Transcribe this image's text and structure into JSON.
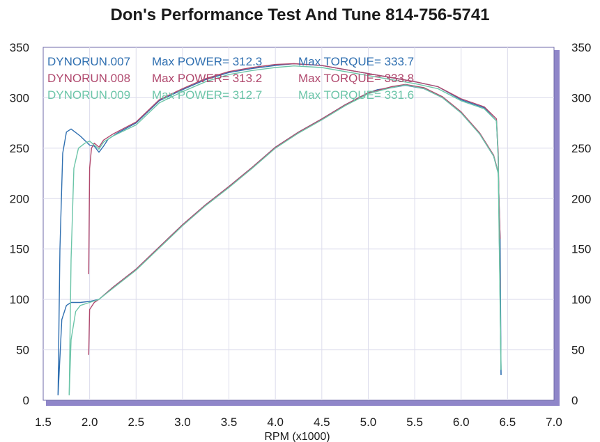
{
  "chart_data": {
    "type": "line",
    "title": "Don's Performance Test And Tune 814-756-5741",
    "xlabel": "RPM (x1000)",
    "ylabel": "",
    "xlim": [
      1.5,
      7.0
    ],
    "ylim": [
      0,
      350
    ],
    "x_ticks": [
      "1.5",
      "2.0",
      "2.5",
      "3.0",
      "3.5",
      "4.0",
      "4.5",
      "5.0",
      "5.5",
      "6.0",
      "6.5",
      "7.0"
    ],
    "y_ticks": [
      "0",
      "50",
      "100",
      "150",
      "200",
      "250",
      "300",
      "350"
    ],
    "y_ticks_right": [
      "0",
      "50",
      "100",
      "150",
      "200",
      "250",
      "300",
      "350"
    ],
    "grid": true,
    "legend_position": "top-left",
    "colors": {
      "run007": "#2f6fb0",
      "run008": "#b0496e",
      "run009": "#6cc5a8",
      "frame": "#8f86c9",
      "frame_shadow": "#8f86c9"
    },
    "legend": [
      {
        "run": "DYNORUN.007",
        "power_label": "Max POWER=",
        "power": "312.3",
        "torque_label": "Max TORQUE=",
        "torque": "333.7"
      },
      {
        "run": "DYNORUN.008",
        "power_label": "Max POWER=",
        "power": "313.2",
        "torque_label": "Max TORQUE=",
        "torque": "333.8"
      },
      {
        "run": "DYNORUN.009",
        "power_label": "Max POWER=",
        "power": "312.7",
        "torque_label": "Max TORQUE=",
        "torque": "331.6"
      }
    ],
    "series": [
      {
        "name": "DYNORUN.007",
        "torque": [
          [
            1.66,
            5
          ],
          [
            1.68,
            150
          ],
          [
            1.71,
            245
          ],
          [
            1.75,
            266
          ],
          [
            1.8,
            269
          ],
          [
            1.9,
            262
          ],
          [
            2.0,
            253
          ],
          [
            2.05,
            252
          ],
          [
            2.1,
            246
          ],
          [
            2.15,
            252
          ],
          [
            2.2,
            259
          ],
          [
            2.3,
            265
          ],
          [
            2.5,
            275
          ],
          [
            2.75,
            297
          ],
          [
            3.0,
            308
          ],
          [
            3.25,
            318
          ],
          [
            3.5,
            325
          ],
          [
            3.75,
            329
          ],
          [
            4.0,
            332
          ],
          [
            4.2,
            333.7
          ],
          [
            4.5,
            332
          ],
          [
            4.75,
            328
          ],
          [
            5.0,
            324
          ],
          [
            5.25,
            320
          ],
          [
            5.5,
            316
          ],
          [
            5.75,
            311
          ],
          [
            6.0,
            298
          ],
          [
            6.25,
            290
          ],
          [
            6.38,
            277
          ],
          [
            6.4,
            240
          ],
          [
            6.42,
            100
          ],
          [
            6.43,
            25
          ]
        ],
        "power": [
          [
            1.66,
            5
          ],
          [
            1.7,
            80
          ],
          [
            1.75,
            94
          ],
          [
            1.8,
            97
          ],
          [
            1.9,
            97
          ],
          [
            2.0,
            98
          ],
          [
            2.1,
            100
          ],
          [
            2.25,
            112
          ],
          [
            2.5,
            130
          ],
          [
            2.75,
            152
          ],
          [
            3.0,
            174
          ],
          [
            3.25,
            194
          ],
          [
            3.5,
            212
          ],
          [
            3.75,
            231
          ],
          [
            4.0,
            251
          ],
          [
            4.25,
            266
          ],
          [
            4.5,
            279
          ],
          [
            4.75,
            293
          ],
          [
            5.0,
            305
          ],
          [
            5.1,
            308
          ],
          [
            5.25,
            310
          ],
          [
            5.4,
            312.3
          ],
          [
            5.6,
            309
          ],
          [
            5.8,
            300
          ],
          [
            6.0,
            285
          ],
          [
            6.2,
            264
          ],
          [
            6.35,
            242
          ],
          [
            6.4,
            225
          ],
          [
            6.42,
            160
          ],
          [
            6.43,
            25
          ]
        ]
      },
      {
        "name": "DYNORUN.008",
        "torque": [
          [
            1.99,
            125
          ],
          [
            2.0,
            230
          ],
          [
            2.02,
            250
          ],
          [
            2.05,
            255
          ],
          [
            2.1,
            251
          ],
          [
            2.15,
            258
          ],
          [
            2.25,
            264
          ],
          [
            2.5,
            276
          ],
          [
            2.75,
            298
          ],
          [
            3.0,
            309
          ],
          [
            3.25,
            319
          ],
          [
            3.5,
            326
          ],
          [
            3.75,
            330
          ],
          [
            4.0,
            333
          ],
          [
            4.2,
            333.8
          ],
          [
            4.5,
            332
          ],
          [
            4.75,
            328
          ],
          [
            5.0,
            324
          ],
          [
            5.25,
            320
          ],
          [
            5.5,
            316
          ],
          [
            5.75,
            311
          ],
          [
            6.0,
            299
          ],
          [
            6.25,
            291
          ],
          [
            6.38,
            279
          ],
          [
            6.4,
            245
          ],
          [
            6.42,
            110
          ]
        ],
        "power": [
          [
            1.99,
            45
          ],
          [
            2.0,
            90
          ],
          [
            2.05,
            97
          ],
          [
            2.1,
            100
          ],
          [
            2.25,
            112
          ],
          [
            2.5,
            130
          ],
          [
            2.75,
            152
          ],
          [
            3.0,
            174
          ],
          [
            3.25,
            194
          ],
          [
            3.5,
            212
          ],
          [
            3.75,
            231
          ],
          [
            4.0,
            251
          ],
          [
            4.25,
            266
          ],
          [
            4.5,
            279
          ],
          [
            4.75,
            293
          ],
          [
            5.0,
            305
          ],
          [
            5.25,
            311
          ],
          [
            5.4,
            313.2
          ],
          [
            5.6,
            310
          ],
          [
            5.8,
            301
          ],
          [
            6.0,
            286
          ],
          [
            6.2,
            265
          ],
          [
            6.35,
            243
          ],
          [
            6.4,
            226
          ],
          [
            6.42,
            160
          ]
        ]
      },
      {
        "name": "DYNORUN.009",
        "torque": [
          [
            1.78,
            5
          ],
          [
            1.8,
            140
          ],
          [
            1.83,
            230
          ],
          [
            1.88,
            250
          ],
          [
            1.95,
            255
          ],
          [
            2.0,
            257
          ],
          [
            2.1,
            249
          ],
          [
            2.15,
            256
          ],
          [
            2.25,
            262
          ],
          [
            2.5,
            273
          ],
          [
            2.75,
            295
          ],
          [
            3.0,
            306
          ],
          [
            3.25,
            316
          ],
          [
            3.5,
            323
          ],
          [
            3.75,
            327
          ],
          [
            4.0,
            330
          ],
          [
            4.2,
            331.6
          ],
          [
            4.5,
            330
          ],
          [
            4.75,
            326
          ],
          [
            5.0,
            322
          ],
          [
            5.25,
            318
          ],
          [
            5.5,
            314
          ],
          [
            5.75,
            309
          ],
          [
            6.0,
            297
          ],
          [
            6.25,
            289
          ],
          [
            6.38,
            277
          ],
          [
            6.4,
            240
          ],
          [
            6.43,
            30
          ]
        ],
        "power": [
          [
            1.78,
            5
          ],
          [
            1.8,
            60
          ],
          [
            1.85,
            88
          ],
          [
            1.9,
            94
          ],
          [
            2.0,
            97
          ],
          [
            2.1,
            100
          ],
          [
            2.25,
            111
          ],
          [
            2.5,
            129
          ],
          [
            2.75,
            151
          ],
          [
            3.0,
            173
          ],
          [
            3.25,
            193
          ],
          [
            3.5,
            211
          ],
          [
            3.75,
            230
          ],
          [
            4.0,
            250
          ],
          [
            4.25,
            265
          ],
          [
            4.5,
            278
          ],
          [
            4.75,
            292
          ],
          [
            5.0,
            304
          ],
          [
            5.25,
            310
          ],
          [
            5.4,
            312.7
          ],
          [
            5.6,
            309
          ],
          [
            5.8,
            300
          ],
          [
            6.0,
            285
          ],
          [
            6.2,
            264
          ],
          [
            6.35,
            242
          ],
          [
            6.4,
            225
          ],
          [
            6.43,
            30
          ]
        ]
      }
    ]
  }
}
